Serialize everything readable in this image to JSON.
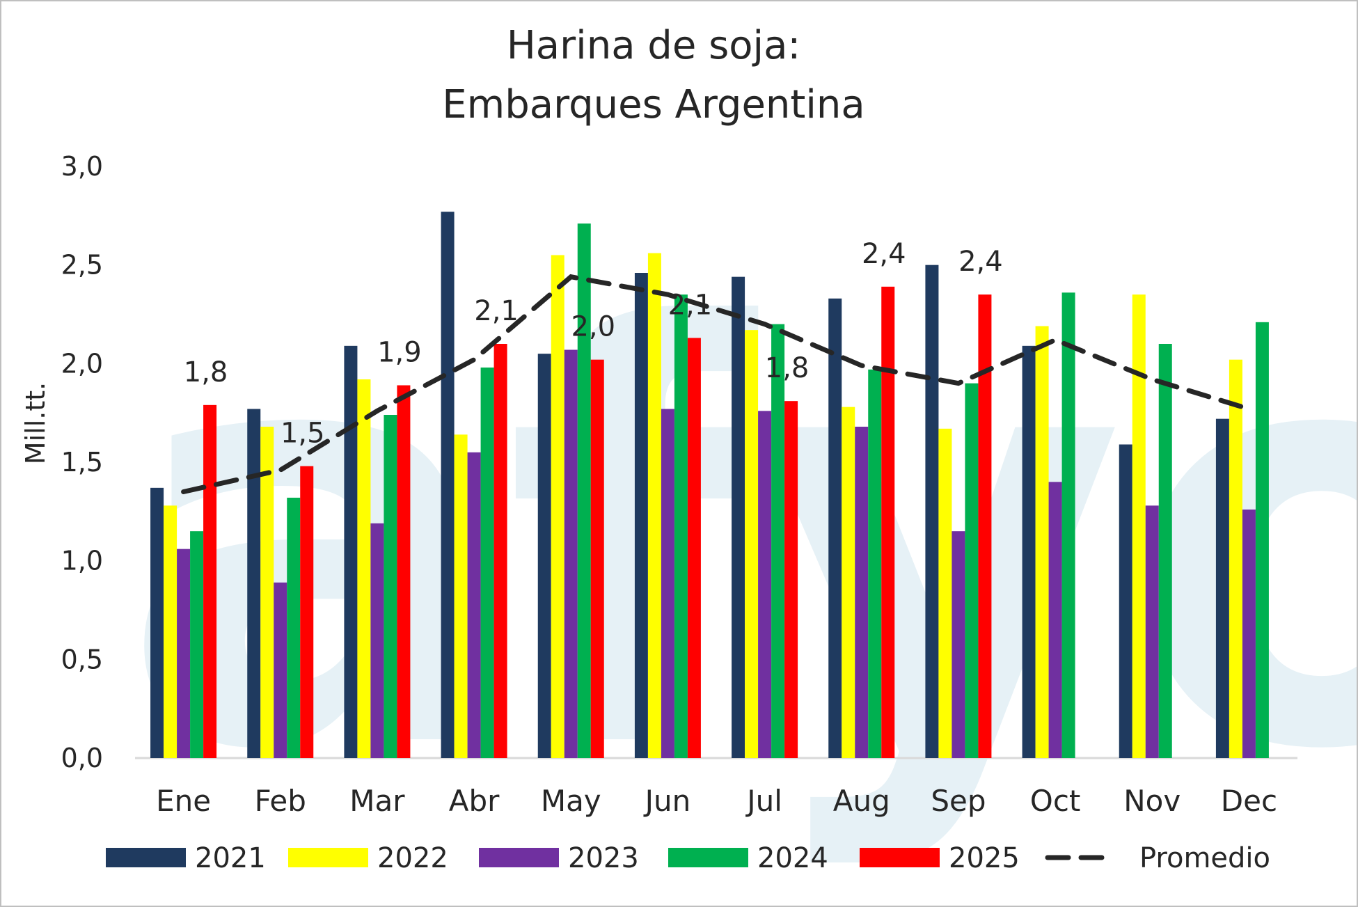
{
  "chart_data": {
    "type": "bar",
    "title_lines": [
      "Harina de soja:",
      "Embarques Argentina"
    ],
    "ylabel": "Mill.tt.",
    "ylim": [
      0,
      3.0
    ],
    "yticks": [
      "0,0",
      "0,5",
      "1,0",
      "1,5",
      "2,0",
      "2,5",
      "3,0"
    ],
    "categories": [
      "Ene",
      "Feb",
      "Mar",
      "Abr",
      "May",
      "Jun",
      "Jul",
      "Aug",
      "Sep",
      "Oct",
      "Nov",
      "Dec"
    ],
    "series": [
      {
        "name": "2021",
        "color": "#1F3A5F",
        "values": [
          1.37,
          1.77,
          2.09,
          2.77,
          2.05,
          2.46,
          2.44,
          2.33,
          2.5,
          2.09,
          1.59,
          1.72
        ]
      },
      {
        "name": "2022",
        "color": "#FFFF00",
        "values": [
          1.28,
          1.68,
          1.92,
          1.64,
          2.55,
          2.56,
          2.17,
          1.78,
          1.67,
          2.19,
          2.35,
          2.02
        ]
      },
      {
        "name": "2023",
        "color": "#7030A0",
        "values": [
          1.06,
          0.89,
          1.19,
          1.55,
          2.07,
          1.77,
          1.76,
          1.68,
          1.15,
          1.4,
          1.28,
          1.26
        ]
      },
      {
        "name": "2024",
        "color": "#00B050",
        "values": [
          1.15,
          1.32,
          1.74,
          1.98,
          2.71,
          2.35,
          2.2,
          1.97,
          1.9,
          2.36,
          2.1,
          2.21
        ]
      },
      {
        "name": "2025",
        "color": "#FF0000",
        "values": [
          1.79,
          1.48,
          1.89,
          2.1,
          2.02,
          2.13,
          1.81,
          2.39,
          2.35,
          null,
          null,
          null
        ]
      }
    ],
    "average": {
      "name": "Promedio",
      "color": "#262626",
      "values": [
        1.35,
        1.46,
        1.76,
        2.02,
        2.44,
        2.35,
        2.2,
        1.99,
        1.9,
        2.12,
        1.92,
        1.77
      ]
    },
    "data_labels": [
      "1,8",
      "1,5",
      "1,9",
      "2,1",
      "2,0",
      "2,1",
      "1,8",
      "2,4",
      "2,4"
    ],
    "legend_position": "bottom",
    "watermark_text": "afyo",
    "colors": {
      "watermark": "#E6F1F6",
      "axis": "#d9d9d9",
      "border": "#bfbfbf"
    }
  }
}
